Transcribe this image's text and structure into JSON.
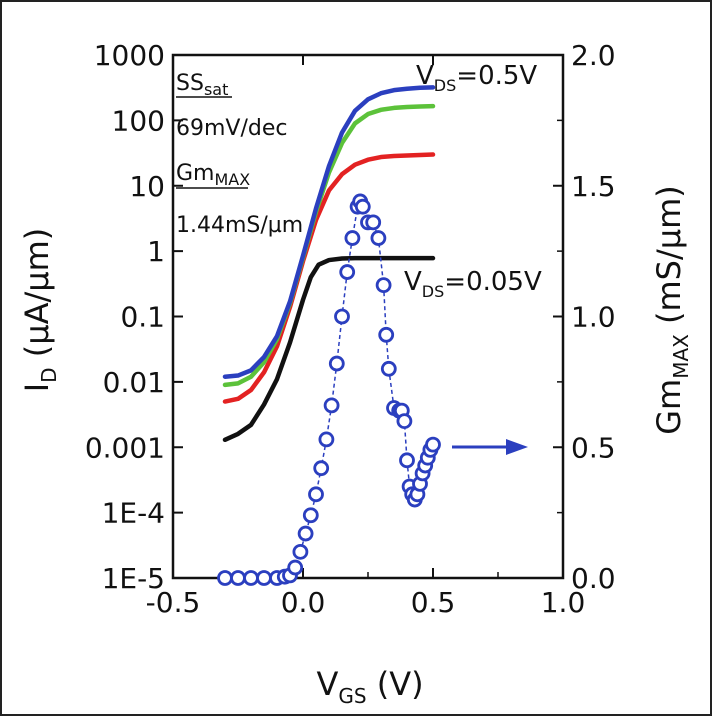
{
  "chart_data": {
    "type": "line",
    "xlabel": "V",
    "xlabel_sub": "GS",
    "xlabel_suffix": " (V)",
    "ylabel_left_main": "I",
    "ylabel_left_sub": "D",
    "ylabel_left_suffix": " (µA/µm)",
    "ylabel_right_main": "Gm",
    "ylabel_right_sub": "MAX",
    "ylabel_right_suffix": " (mS/µm)",
    "xlim": [
      -0.5,
      1.0
    ],
    "ylim_left": [
      1e-05,
      1000
    ],
    "yscale_left": "log",
    "ylim_right": [
      0.0,
      2.0
    ],
    "grid": false,
    "x_ticks": [
      "-0.5",
      "0.0",
      "0.5",
      "1.0"
    ],
    "x_tick_values": [
      -0.5,
      0.0,
      0.5,
      1.0
    ],
    "y_left_ticks": [
      "1000",
      "100",
      "10",
      "1",
      "0.1",
      "0.01",
      "0.001",
      "1E-4",
      "1E-5"
    ],
    "y_left_tick_values": [
      1000,
      100,
      10,
      1,
      0.1,
      0.01,
      0.001,
      0.0001,
      1e-05
    ],
    "y_right_ticks": [
      "2.0",
      "1.5",
      "1.0",
      "0.5",
      "0.0"
    ],
    "y_right_tick_values": [
      2.0,
      1.5,
      1.0,
      0.5,
      0.0
    ],
    "annotations": {
      "ss_label_main": "SS",
      "ss_label_sub": "sat",
      "ss_value": "69mV/dec",
      "gm_label_main": "Gm",
      "gm_label_sub": "MAX",
      "gm_value": "1.44mS/µm",
      "vds_high_main": "V",
      "vds_high_sub": "DS",
      "vds_high_suffix": "=0.5V",
      "vds_low_main": "V",
      "vds_low_sub": "DS",
      "vds_low_suffix": "=0.05V"
    },
    "series": [
      {
        "color": "#111111",
        "axis": "left",
        "style": "line",
        "x": [
          -0.3,
          -0.25,
          -0.2,
          -0.15,
          -0.1,
          -0.05,
          0.0,
          0.03,
          0.06,
          0.1,
          0.15,
          0.2,
          0.3,
          0.4,
          0.5
        ],
        "y": [
          0.0013,
          0.0016,
          0.0022,
          0.0045,
          0.011,
          0.04,
          0.18,
          0.4,
          0.62,
          0.73,
          0.77,
          0.78,
          0.78,
          0.78,
          0.78
        ]
      },
      {
        "color": "#e32222",
        "axis": "left",
        "style": "line",
        "x": [
          -0.3,
          -0.25,
          -0.2,
          -0.15,
          -0.1,
          -0.05,
          0.0,
          0.05,
          0.1,
          0.15,
          0.2,
          0.25,
          0.3,
          0.35,
          0.4,
          0.45,
          0.5
        ],
        "y": [
          0.005,
          0.0055,
          0.0075,
          0.014,
          0.035,
          0.14,
          0.7,
          3.0,
          8.5,
          15.0,
          21.0,
          25.0,
          27.5,
          28.5,
          29.0,
          29.5,
          30.0
        ]
      },
      {
        "color": "#5cc23a",
        "axis": "left",
        "style": "line",
        "x": [
          -0.3,
          -0.25,
          -0.2,
          -0.15,
          -0.1,
          -0.05,
          0.0,
          0.05,
          0.1,
          0.15,
          0.2,
          0.25,
          0.3,
          0.35,
          0.4,
          0.45,
          0.5
        ],
        "y": [
          0.009,
          0.0095,
          0.012,
          0.02,
          0.045,
          0.16,
          0.8,
          4.0,
          16.0,
          45.0,
          90.0,
          125.0,
          145.0,
          155.0,
          160.0,
          163.0,
          165.0
        ]
      },
      {
        "color": "#2b3fbf",
        "axis": "left",
        "style": "line",
        "x": [
          -0.3,
          -0.25,
          -0.2,
          -0.15,
          -0.1,
          -0.05,
          0.0,
          0.05,
          0.1,
          0.15,
          0.2,
          0.25,
          0.3,
          0.35,
          0.4,
          0.45,
          0.5
        ],
        "y": [
          0.012,
          0.0125,
          0.015,
          0.024,
          0.05,
          0.17,
          0.85,
          4.5,
          20.0,
          65.0,
          140.0,
          210.0,
          260.0,
          290.0,
          305.0,
          315.0,
          320.0
        ]
      },
      {
        "color": "#2b3fbf",
        "axis": "right",
        "style": "markers",
        "x": [
          -0.3,
          -0.25,
          -0.2,
          -0.15,
          -0.1,
          -0.07,
          -0.05,
          -0.03,
          -0.01,
          0.01,
          0.03,
          0.05,
          0.07,
          0.09,
          0.11,
          0.13,
          0.15,
          0.17,
          0.19,
          0.21,
          0.22,
          0.23,
          0.25,
          0.27,
          0.29,
          0.31,
          0.32,
          0.33,
          0.35,
          0.37,
          0.38,
          0.39,
          0.4,
          0.41,
          0.42,
          0.43,
          0.44,
          0.45,
          0.46,
          0.47,
          0.48,
          0.49,
          0.5
        ],
        "y": [
          0.0,
          0.0,
          0.0,
          0.0,
          0.0,
          0.005,
          0.01,
          0.04,
          0.1,
          0.17,
          0.24,
          0.32,
          0.42,
          0.53,
          0.66,
          0.82,
          1.0,
          1.17,
          1.3,
          1.42,
          1.44,
          1.42,
          1.36,
          1.36,
          1.3,
          1.12,
          0.93,
          0.8,
          0.65,
          0.64,
          0.64,
          0.6,
          0.45,
          0.35,
          0.32,
          0.3,
          0.32,
          0.36,
          0.4,
          0.43,
          0.46,
          0.49,
          0.51
        ]
      }
    ],
    "arrow_color": "#2b3fbf"
  }
}
